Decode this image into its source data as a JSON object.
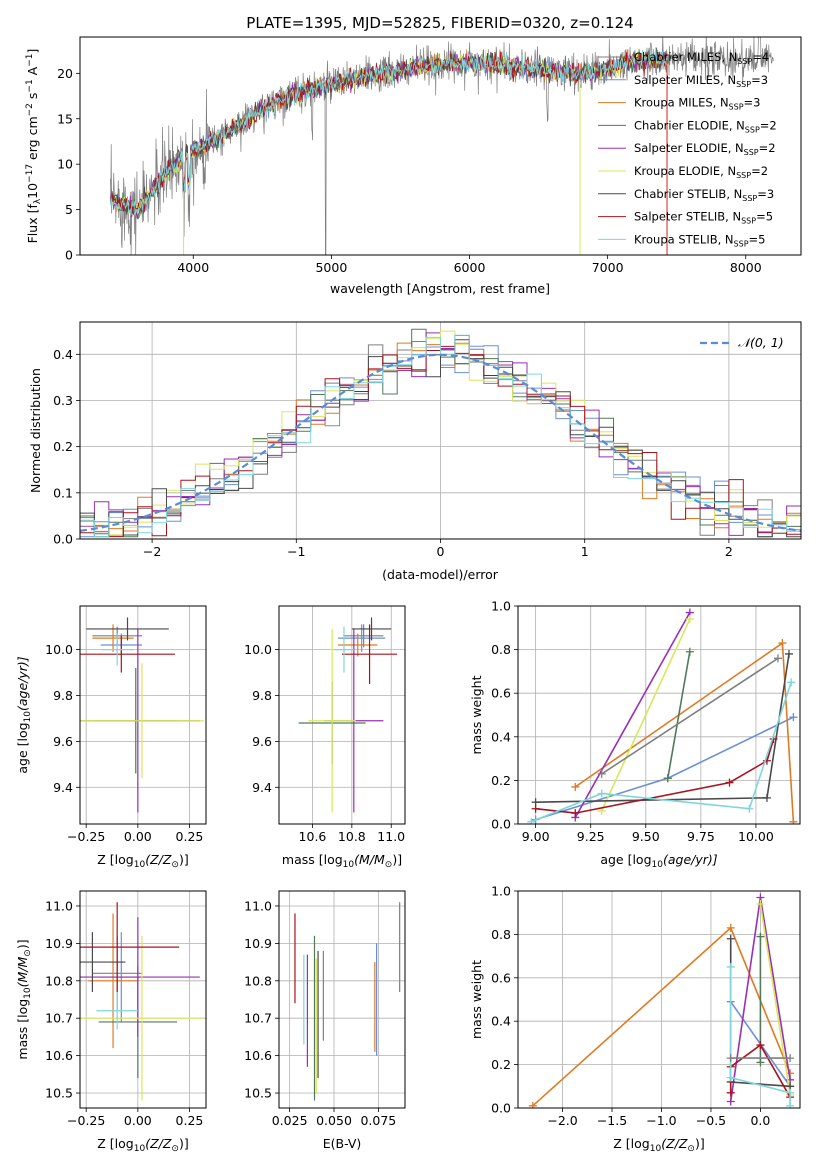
{
  "figure": {
    "title": "PLATE=1395, MJD=52825, FIBERID=0320, z=0.124"
  },
  "models": [
    {
      "label": "Chabrier MILES, N",
      "sub": "SSP",
      "n": "=4",
      "color": "#7f7f7f"
    },
    {
      "label": "Salpeter MILES, N",
      "sub": "SSP",
      "n": "=3",
      "color": "#6a8fdc"
    },
    {
      "label": "Kroupa MILES, N",
      "sub": "SSP",
      "n": "=3",
      "color": "#e07a22"
    },
    {
      "label": "Chabrier ELODIE, N",
      "sub": "SSP",
      "n": "=2",
      "color": "#527a5a"
    },
    {
      "label": "Salpeter ELODIE, N",
      "sub": "SSP",
      "n": "=2",
      "color": "#9a2fb5"
    },
    {
      "label": "Kroupa ELODIE, N",
      "sub": "SSP",
      "n": "=2",
      "color": "#d8e85a"
    },
    {
      "label": "Chabrier STELIB, N",
      "sub": "SSP",
      "n": "=3",
      "color": "#4a4a4a"
    },
    {
      "label": "Salpeter STELIB, N",
      "sub": "SSP",
      "n": "=5",
      "color": "#a8141e"
    },
    {
      "label": "Kroupa STELIB, N",
      "sub": "SSP",
      "n": "=5",
      "color": "#7dd6dc"
    }
  ],
  "chart_data": [
    {
      "id": "spectrum",
      "type": "line",
      "xlabel": "wavelength [Angstrom, rest frame]",
      "ylabel_main": "Flux [f",
      "ylabel_sub": "λ",
      "ylabel_mid": "10",
      "ylabel_sup1": "−17",
      "ylabel_tail1": " erg cm",
      "ylabel_sup2": "−2",
      "ylabel_tail2": " s",
      "ylabel_sup3": "−1",
      "ylabel_tail3": " A",
      "ylabel_sup4": "−1",
      "ylabel_end": "]",
      "xlim": [
        3180,
        8400
      ],
      "ylim": [
        0,
        24
      ],
      "xticks": [
        4000,
        5000,
        6000,
        7000,
        8000
      ],
      "yticks": [
        0,
        5,
        10,
        15,
        20
      ],
      "continuum": [
        [
          3400,
          6
        ],
        [
          3600,
          5
        ],
        [
          3800,
          9
        ],
        [
          3900,
          10.5
        ],
        [
          4000,
          11.5
        ],
        [
          4200,
          13
        ],
        [
          4400,
          15
        ],
        [
          4600,
          17
        ],
        [
          4800,
          18
        ],
        [
          5000,
          18.8
        ],
        [
          5200,
          19.5
        ],
        [
          5400,
          20
        ],
        [
          5600,
          20.6
        ],
        [
          5800,
          21
        ],
        [
          6000,
          21.2
        ],
        [
          6200,
          21
        ],
        [
          6400,
          20.5
        ],
        [
          6600,
          20.3
        ],
        [
          6800,
          20
        ],
        [
          7000,
          20.5
        ],
        [
          7200,
          21.5
        ],
        [
          7400,
          21.5
        ]
      ],
      "data_range": [
        3400,
        8200
      ],
      "model_range": [
        3400,
        7430
      ]
    },
    {
      "id": "residuals",
      "type": "histogram",
      "xlabel": "(data-model)/error",
      "ylabel": "Normed distribution",
      "xlim": [
        -2.5,
        2.5
      ],
      "ylim": [
        0,
        0.47
      ],
      "xticks": [
        -2,
        -1,
        0,
        1,
        2
      ],
      "yticks": [
        0.0,
        0.1,
        0.2,
        0.3,
        0.4
      ],
      "bin_width": 0.1,
      "legend": "𝒩(0, 1)",
      "gaussian_color": "#5b8bd8"
    },
    {
      "id": "age-vs-Z",
      "type": "errorbar",
      "xlabel": "Z [log",
      "xlabel_sub": "10",
      "xlabel_tail": "(Z/Z",
      "xlabel_sub2": "⊙",
      "xlabel_end": ")]",
      "ylabel": "age  [log",
      "ylabel_sub": "10",
      "ylabel_tail": "(age/yr)]",
      "xlim": [
        -0.28,
        0.33
      ],
      "ylim": [
        9.24,
        10.19
      ],
      "xticks": [
        -0.25,
        0.0,
        0.25
      ],
      "yticks": [
        9.4,
        9.6,
        9.8,
        10.0
      ],
      "points": [
        {
          "m": 0,
          "x": -0.1,
          "y": 10.06,
          "xerr": 0.12,
          "yerr": 0.04
        },
        {
          "m": 1,
          "x": -0.08,
          "y": 10.02,
          "xerr": 0.1,
          "yerr": 0.05
        },
        {
          "m": 2,
          "x": -0.12,
          "y": 10.05,
          "xerr": 0.1,
          "yerr": 0.06
        },
        {
          "m": 3,
          "x": -0.01,
          "y": 9.69,
          "xerr": 0.2,
          "yerr": 0.23
        },
        {
          "m": 4,
          "x": 0.0,
          "y": 9.69,
          "xerr": 0.3,
          "yerr": 0.4
        },
        {
          "m": 5,
          "x": 0.02,
          "y": 9.69,
          "xerr": 0.3,
          "yerr": 0.25
        },
        {
          "m": 6,
          "x": -0.05,
          "y": 10.09,
          "xerr": 0.2,
          "yerr": 0.05
        },
        {
          "m": 7,
          "x": -0.08,
          "y": 9.98,
          "xerr": 0.26,
          "yerr": 0.08
        },
        {
          "m": 8,
          "x": -0.1,
          "y": 10.0,
          "xerr": 0.08,
          "yerr": 0.07
        }
      ]
    },
    {
      "id": "age-vs-mass",
      "type": "errorbar",
      "xlabel": "mass [log",
      "xlabel_sub": "10",
      "xlabel_tail": "(M/M",
      "xlabel_sub2": "⊙",
      "xlabel_end": ")]",
      "ylabel": "",
      "xlim": [
        10.43,
        11.07
      ],
      "ylim": [
        9.24,
        10.19
      ],
      "xticks": [
        10.6,
        10.8,
        11.0
      ],
      "yticks": [
        9.4,
        9.6,
        9.8,
        10.0
      ],
      "points": [
        {
          "m": 0,
          "x": 10.86,
          "y": 10.06,
          "xerr": 0.1,
          "yerr": 0.05
        },
        {
          "m": 1,
          "x": 10.85,
          "y": 10.05,
          "xerr": 0.12,
          "yerr": 0.06
        },
        {
          "m": 2,
          "x": 10.83,
          "y": 10.02,
          "xerr": 0.1,
          "yerr": 0.05
        },
        {
          "m": 3,
          "x": 10.7,
          "y": 9.68,
          "xerr": 0.17,
          "yerr": 0.18
        },
        {
          "m": 4,
          "x": 10.81,
          "y": 9.69,
          "xerr": 0.15,
          "yerr": 0.4
        },
        {
          "m": 5,
          "x": 10.7,
          "y": 9.69,
          "xerr": 0.12,
          "yerr": 0.4
        },
        {
          "m": 6,
          "x": 10.9,
          "y": 10.09,
          "xerr": 0.1,
          "yerr": 0.05
        },
        {
          "m": 7,
          "x": 10.89,
          "y": 9.98,
          "xerr": 0.14,
          "yerr": 0.13
        },
        {
          "m": 8,
          "x": 10.76,
          "y": 10.0,
          "xerr": 0.05,
          "yerr": 0.1
        }
      ]
    },
    {
      "id": "weight-vs-age",
      "type": "line",
      "xlabel": "age  [log",
      "xlabel_sub": "10",
      "xlabel_tail": "(age/yr)]",
      "ylabel": "mass weight",
      "xlim": [
        8.92,
        10.2
      ],
      "ylim": [
        0,
        1.0
      ],
      "xticks": [
        9.0,
        9.25,
        9.5,
        9.75,
        10.0
      ],
      "yticks": [
        0.0,
        0.2,
        0.4,
        0.6,
        0.8,
        1.0
      ],
      "series": [
        {
          "m": 1,
          "points": [
            [
              9.0,
              0.02
            ],
            [
              9.6,
              0.21
            ],
            [
              10.17,
              0.49
            ]
          ]
        },
        {
          "m": 2,
          "points": [
            [
              9.18,
              0.17
            ],
            [
              10.12,
              0.83
            ],
            [
              10.17,
              0.01
            ]
          ]
        },
        {
          "m": 3,
          "points": [
            [
              9.6,
              0.21
            ],
            [
              9.7,
              0.79
            ]
          ]
        },
        {
          "m": 4,
          "points": [
            [
              9.18,
              0.03
            ],
            [
              9.7,
              0.97
            ]
          ]
        },
        {
          "m": 5,
          "points": [
            [
              9.3,
              0.06
            ],
            [
              9.7,
              0.94
            ]
          ]
        },
        {
          "m": 6,
          "points": [
            [
              9.0,
              0.1
            ],
            [
              10.05,
              0.12
            ],
            [
              10.15,
              0.78
            ]
          ]
        },
        {
          "m": 7,
          "points": [
            [
              9.0,
              0.07
            ],
            [
              9.18,
              0.05
            ],
            [
              9.88,
              0.19
            ],
            [
              10.05,
              0.29
            ],
            [
              10.08,
              0.39
            ]
          ]
        },
        {
          "m": 8,
          "points": [
            [
              8.98,
              0.01
            ],
            [
              9.3,
              0.14
            ],
            [
              9.97,
              0.07
            ],
            [
              10.16,
              0.65
            ]
          ]
        },
        {
          "m": 0,
          "points": [
            [
              9.3,
              0.23
            ],
            [
              10.1,
              0.76
            ]
          ]
        }
      ]
    },
    {
      "id": "mass-vs-Z",
      "type": "errorbar",
      "xlabel": "Z [log",
      "xlabel_sub": "10",
      "xlabel_tail": "(Z/Z",
      "xlabel_sub2": "⊙",
      "xlabel_end": ")]",
      "ylabel": "mass [log",
      "ylabel_sub": "10",
      "ylabel_tail": "(M/M",
      "ylabel_sub2": "⊙",
      "ylabel_end": ")]",
      "xlim": [
        -0.28,
        0.33
      ],
      "ylim": [
        10.46,
        11.04
      ],
      "xticks": [
        -0.25,
        0.0,
        0.25
      ],
      "yticks": [
        10.5,
        10.6,
        10.7,
        10.8,
        10.9,
        11.0
      ],
      "points": [
        {
          "m": 0,
          "x": -0.1,
          "y": 10.82,
          "xerr": 0.12,
          "yerr": 0.1
        },
        {
          "m": 1,
          "x": -0.08,
          "y": 10.81,
          "xerr": 0.1,
          "yerr": 0.12
        },
        {
          "m": 2,
          "x": -0.12,
          "y": 10.8,
          "xerr": 0.12,
          "yerr": 0.18
        },
        {
          "m": 3,
          "x": 0.0,
          "y": 10.69,
          "xerr": 0.19,
          "yerr": 0.15
        },
        {
          "m": 4,
          "x": 0.0,
          "y": 10.81,
          "xerr": 0.3,
          "yerr": 0.16
        },
        {
          "m": 5,
          "x": 0.02,
          "y": 10.7,
          "xerr": 0.3,
          "yerr": 0.22
        },
        {
          "m": 6,
          "x": -0.22,
          "y": 10.85,
          "xerr": 0.16,
          "yerr": 0.08
        },
        {
          "m": 7,
          "x": -0.1,
          "y": 10.89,
          "xerr": 0.3,
          "yerr": 0.12
        },
        {
          "m": 8,
          "x": -0.1,
          "y": 10.72,
          "xerr": 0.1,
          "yerr": 0.05
        }
      ]
    },
    {
      "id": "mass-vs-EBV",
      "type": "errorbar",
      "xlabel": "E(B-V)",
      "ylabel": "",
      "xlim": [
        0.019,
        0.09
      ],
      "ylim": [
        10.46,
        11.04
      ],
      "xticks": [
        0.025,
        0.05,
        0.075
      ],
      "yticks": [
        10.5,
        10.6,
        10.7,
        10.8,
        10.9,
        11.0
      ],
      "points": [
        {
          "m": 0,
          "x": 0.044,
          "y": 10.76,
          "yerr": 0.12
        },
        {
          "m": 1,
          "x": 0.074,
          "y": 10.75,
          "yerr": 0.15
        },
        {
          "m": 2,
          "x": 0.073,
          "y": 10.73,
          "yerr": 0.12
        },
        {
          "m": 3,
          "x": 0.039,
          "y": 10.7,
          "yerr": 0.22
        },
        {
          "m": 4,
          "x": 0.035,
          "y": 10.72,
          "yerr": 0.15
        },
        {
          "m": 5,
          "x": 0.04,
          "y": 10.68,
          "yerr": 0.18
        },
        {
          "m": 6,
          "x": 0.041,
          "y": 10.71,
          "yerr": 0.17
        },
        {
          "m": 7,
          "x": 0.028,
          "y": 10.86,
          "yerr": 0.12
        },
        {
          "m": 8,
          "x": 0.033,
          "y": 10.75,
          "yerr": 0.12
        },
        {
          "m": 0,
          "x": 0.087,
          "y": 10.89,
          "yerr": 0.12
        }
      ]
    },
    {
      "id": "weight-vs-Z",
      "type": "line",
      "xlabel": "Z [log",
      "xlabel_sub": "10",
      "xlabel_tail": "(Z/Z",
      "xlabel_sub2": "⊙",
      "xlabel_end": ")]",
      "ylabel": "mass weight",
      "xlim": [
        -2.45,
        0.4
      ],
      "ylim": [
        0,
        1.0
      ],
      "xticks": [
        -2.0,
        -1.5,
        -1.0,
        -0.5,
        0.0
      ],
      "yticks": [
        0.0,
        0.2,
        0.4,
        0.6,
        0.8,
        1.0
      ],
      "series": [
        {
          "m": 1,
          "points": [
            [
              -0.3,
              0.49
            ],
            [
              0.3,
              0.1
            ]
          ]
        },
        {
          "m": 2,
          "points": [
            [
              -2.3,
              0.01
            ],
            [
              -0.3,
              0.83
            ],
            [
              0.3,
              0.16
            ]
          ]
        },
        {
          "m": 3,
          "points": [
            [
              0.0,
              0.79
            ],
            [
              0.0,
              0.21
            ]
          ]
        },
        {
          "m": 4,
          "points": [
            [
              -0.3,
              0.03
            ],
            [
              0.0,
              0.97
            ],
            [
              0.3,
              0.13
            ]
          ]
        },
        {
          "m": 5,
          "points": [
            [
              0.0,
              0.94
            ],
            [
              0.3,
              0.06
            ]
          ]
        },
        {
          "m": 6,
          "points": [
            [
              -0.3,
              0.78
            ],
            [
              -0.3,
              0.12
            ],
            [
              0.3,
              0.1
            ]
          ]
        },
        {
          "m": 7,
          "points": [
            [
              -0.3,
              0.07
            ],
            [
              -0.3,
              0.19
            ],
            [
              0.0,
              0.29
            ],
            [
              0.3,
              0.05
            ]
          ]
        },
        {
          "m": 8,
          "points": [
            [
              -0.3,
              0.65
            ],
            [
              -0.3,
              0.14
            ],
            [
              0.3,
              0.07
            ],
            [
              0.3,
              0.01
            ]
          ]
        },
        {
          "m": 0,
          "points": [
            [
              -0.3,
              0.23
            ],
            [
              0.3,
              0.23
            ]
          ]
        }
      ]
    }
  ]
}
